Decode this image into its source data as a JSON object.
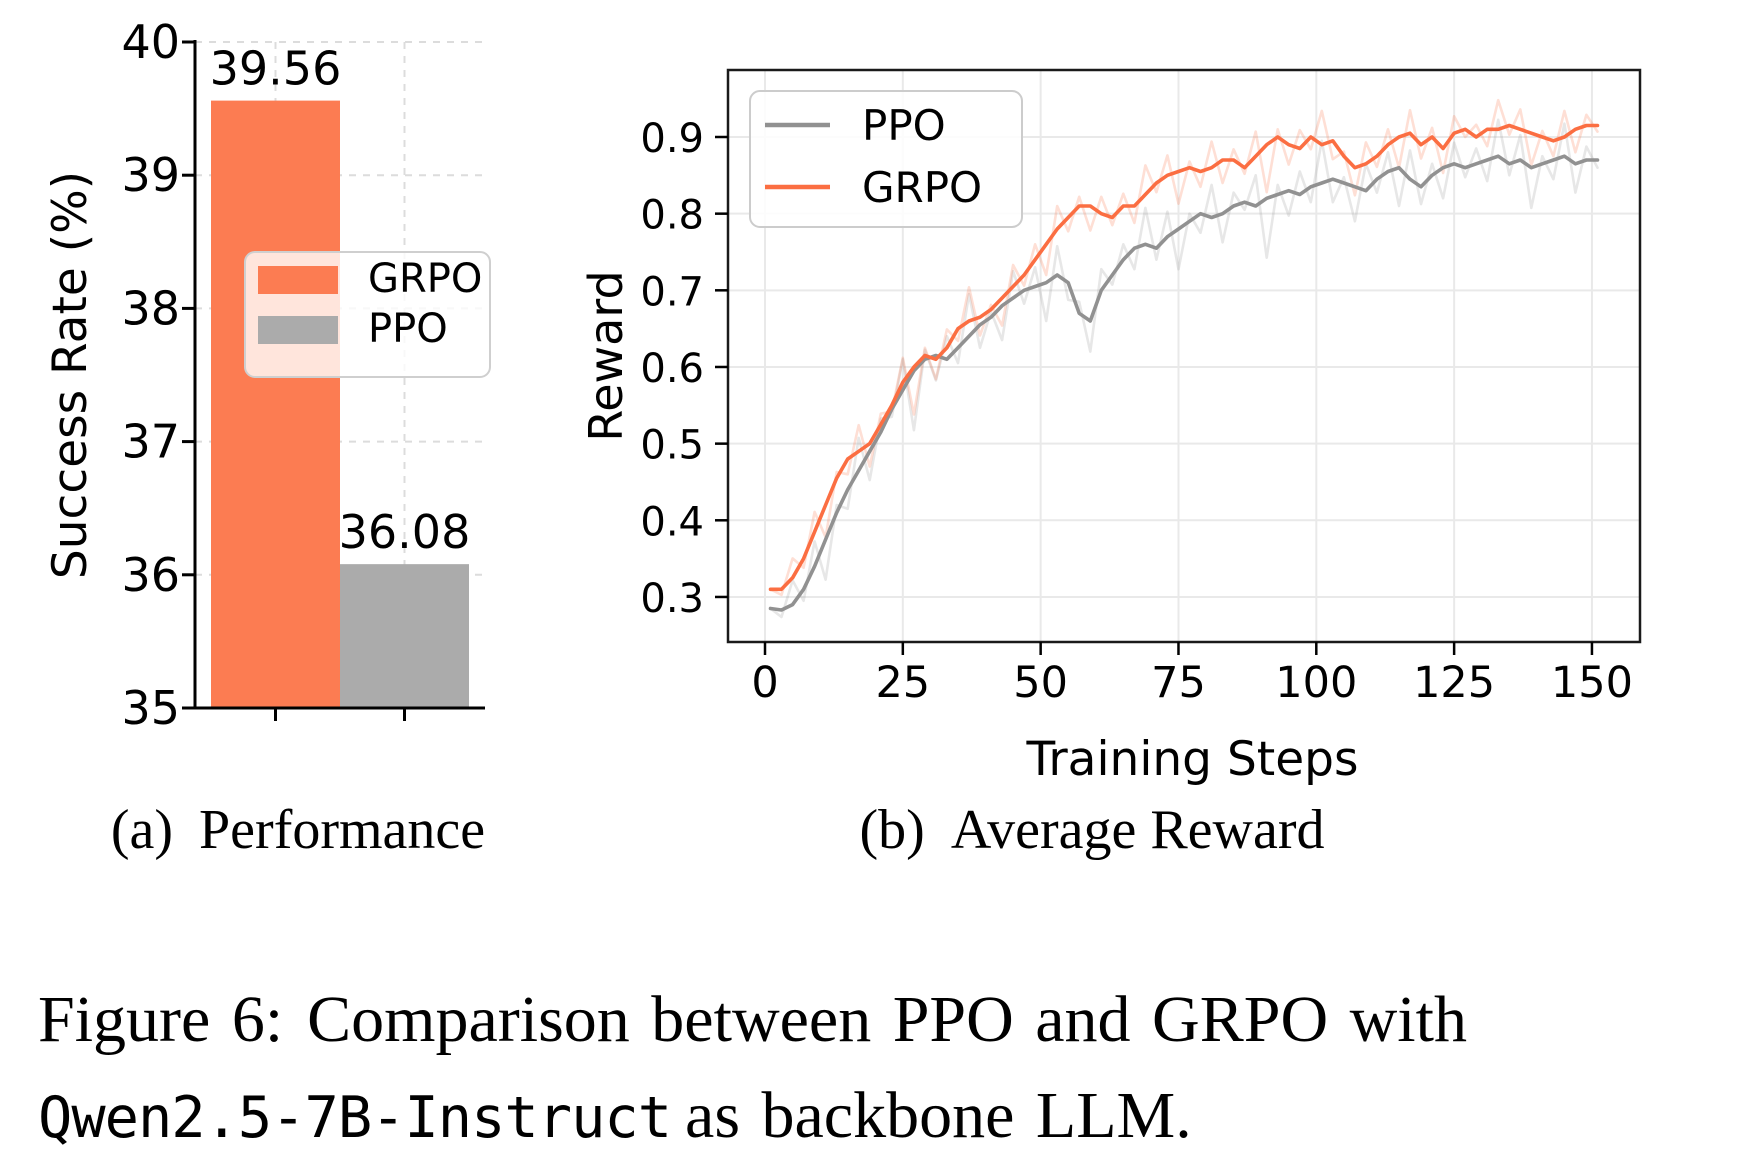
{
  "page": {
    "background": "#FFFFFF"
  },
  "captions": {
    "a": {
      "prefix": "(a)",
      "text": "Performance"
    },
    "b": {
      "prefix": "(b)",
      "text": "Average Reward"
    }
  },
  "figure_caption": {
    "label": "Figure 6:",
    "line1_rest": "Comparison between PPO and GRPO with",
    "code": "Qwen2.5-7B-Instruct",
    "line2_rest": "as backbone LLM."
  },
  "chart_data": [
    {
      "type": "bar",
      "title": "",
      "ylabel": "Success Rate (%)",
      "ylim": [
        35,
        40
      ],
      "yticks": [
        35,
        36,
        37,
        38,
        39,
        40
      ],
      "categories": [
        "GRPO",
        "PPO"
      ],
      "values": [
        39.56,
        36.08
      ],
      "value_labels": [
        "39.56",
        "36.08"
      ],
      "bar_colors": [
        "#FC7C52",
        "#ABABAB"
      ],
      "grid": "dashed",
      "grid_color": "#DCDCDC",
      "legend": [
        {
          "label": "GRPO",
          "color": "#FC7C52"
        },
        {
          "label": "PPO",
          "color": "#ABABAB"
        }
      ]
    },
    {
      "type": "line",
      "title": "",
      "xlabel": "Training Steps",
      "ylabel": "Reward",
      "xlim": [
        -6.7,
        158.7
      ],
      "ylim": [
        0.241,
        0.987
      ],
      "xticks": [
        0,
        25,
        50,
        75,
        100,
        125,
        150
      ],
      "yticks": [
        0.3,
        0.4,
        0.5,
        0.6,
        0.7,
        0.8,
        0.9
      ],
      "grid": "solid",
      "grid_color": "#E9E9E9",
      "legend_position": "upper-left",
      "legend_order": [
        "PPO",
        "GRPO"
      ],
      "x": [
        1,
        3,
        5,
        7,
        9,
        11,
        13,
        15,
        17,
        19,
        21,
        23,
        25,
        27,
        29,
        31,
        33,
        35,
        37,
        39,
        41,
        43,
        45,
        47,
        49,
        51,
        53,
        55,
        57,
        59,
        61,
        63,
        65,
        67,
        69,
        71,
        73,
        75,
        77,
        79,
        81,
        83,
        85,
        87,
        89,
        91,
        93,
        95,
        97,
        99,
        101,
        103,
        105,
        107,
        109,
        111,
        113,
        115,
        117,
        119,
        121,
        123,
        125,
        127,
        129,
        131,
        133,
        135,
        137,
        139,
        141,
        143,
        145,
        147,
        149,
        151
      ],
      "series": [
        {
          "name": "PPO",
          "color": "#919191",
          "raw_color": "rgba(145,145,145,0.22)",
          "noise_amp": 0.05,
          "y": [
            0.285,
            0.283,
            0.29,
            0.31,
            0.34,
            0.375,
            0.41,
            0.44,
            0.465,
            0.49,
            0.515,
            0.545,
            0.57,
            0.595,
            0.61,
            0.615,
            0.61,
            0.625,
            0.64,
            0.655,
            0.665,
            0.68,
            0.69,
            0.7,
            0.705,
            0.71,
            0.72,
            0.71,
            0.67,
            0.66,
            0.7,
            0.72,
            0.74,
            0.755,
            0.76,
            0.755,
            0.77,
            0.78,
            0.79,
            0.8,
            0.795,
            0.8,
            0.81,
            0.815,
            0.81,
            0.82,
            0.825,
            0.83,
            0.825,
            0.835,
            0.84,
            0.845,
            0.84,
            0.835,
            0.83,
            0.845,
            0.855,
            0.86,
            0.845,
            0.835,
            0.85,
            0.86,
            0.865,
            0.86,
            0.865,
            0.87,
            0.875,
            0.865,
            0.87,
            0.86,
            0.865,
            0.87,
            0.875,
            0.865,
            0.87,
            0.87
          ]
        },
        {
          "name": "GRPO",
          "color": "#FB6E42",
          "raw_color": "rgba(252,110,66,0.22)",
          "noise_amp": 0.04,
          "y": [
            0.31,
            0.31,
            0.325,
            0.35,
            0.385,
            0.42,
            0.455,
            0.48,
            0.49,
            0.5,
            0.525,
            0.55,
            0.58,
            0.6,
            0.615,
            0.61,
            0.625,
            0.65,
            0.66,
            0.665,
            0.675,
            0.69,
            0.705,
            0.72,
            0.74,
            0.76,
            0.78,
            0.795,
            0.81,
            0.81,
            0.8,
            0.795,
            0.81,
            0.81,
            0.825,
            0.84,
            0.85,
            0.855,
            0.86,
            0.855,
            0.86,
            0.87,
            0.87,
            0.86,
            0.875,
            0.89,
            0.9,
            0.89,
            0.885,
            0.9,
            0.89,
            0.895,
            0.875,
            0.86,
            0.865,
            0.875,
            0.89,
            0.9,
            0.905,
            0.89,
            0.9,
            0.885,
            0.905,
            0.91,
            0.9,
            0.91,
            0.91,
            0.915,
            0.91,
            0.905,
            0.9,
            0.895,
            0.9,
            0.91,
            0.915,
            0.915
          ]
        }
      ],
      "noise_pattern": [
        0.4,
        -0.55,
        0.95,
        -0.3,
        0.65,
        -1.05,
        0.2,
        -0.5,
        0.85,
        -0.75,
        0.35,
        -0.2,
        0.8,
        -1.55,
        0.25,
        -0.65,
        0.6,
        -0.4,
        1.1,
        -0.6,
        0.15,
        -0.9,
        0.7,
        -0.35,
        0.5,
        -1.0,
        0.75,
        -0.45,
        0.3,
        -0.8,
        0.55,
        -0.25
      ]
    }
  ]
}
